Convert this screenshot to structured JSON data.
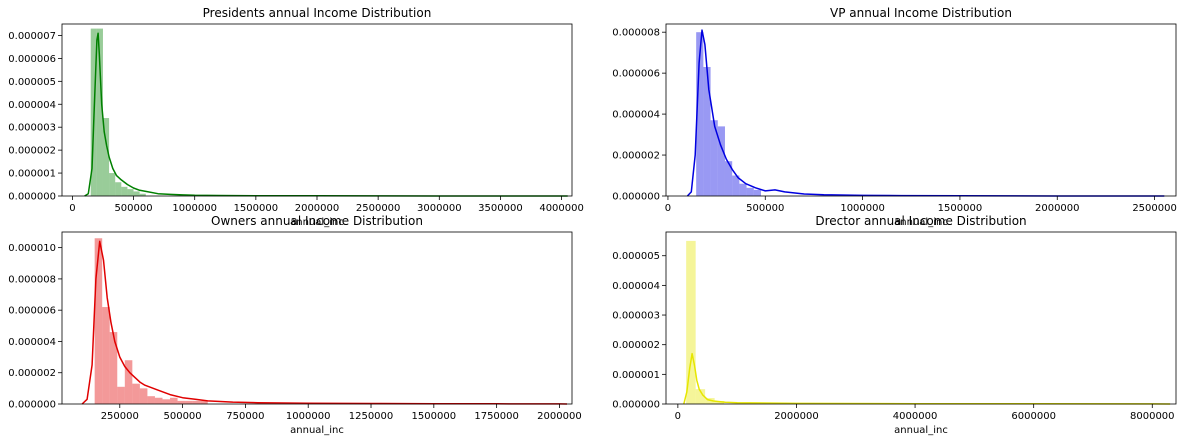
{
  "chart_data": [
    {
      "type": "histogram+kde",
      "title": "Presidents annual Income Distribution",
      "xlabel": "annual_inc",
      "ylabel": "",
      "color": "#008000",
      "xlim": [
        -85000,
        4085000
      ],
      "ylim": [
        0,
        7.5e-06
      ],
      "xticks": [
        0,
        500000,
        1000000,
        1500000,
        2000000,
        2500000,
        3000000,
        3500000,
        4000000
      ],
      "xtick_labels": [
        "0",
        "500000",
        "1000000",
        "1500000",
        "2000000",
        "2500000",
        "3000000",
        "3500000",
        "4000000"
      ],
      "yticks": [
        0,
        1e-06,
        2e-06,
        3e-06,
        4e-06,
        5e-06,
        6e-06,
        7e-06
      ],
      "ytick_labels": [
        "0.000000",
        "0.000001",
        "0.000002",
        "0.000003",
        "0.000004",
        "0.000005",
        "0.000006",
        "0.000007"
      ],
      "bins": [
        {
          "x0": 150000,
          "x1": 200000,
          "y": 7.3e-06
        },
        {
          "x0": 200000,
          "x1": 250000,
          "y": 7.3e-06
        },
        {
          "x0": 250000,
          "x1": 300000,
          "y": 3.4e-06
        },
        {
          "x0": 300000,
          "x1": 350000,
          "y": 1e-06
        },
        {
          "x0": 350000,
          "x1": 400000,
          "y": 6e-07
        },
        {
          "x0": 400000,
          "x1": 450000,
          "y": 4e-07
        },
        {
          "x0": 450000,
          "x1": 500000,
          "y": 3e-07
        },
        {
          "x0": 500000,
          "x1": 550000,
          "y": 2e-07
        },
        {
          "x0": 550000,
          "x1": 600000,
          "y": 1e-07
        }
      ],
      "kde": {
        "x": [
          100000,
          130000,
          160000,
          180000,
          200000,
          210000,
          220000,
          240000,
          260000,
          280000,
          300000,
          330000,
          360000,
          400000,
          450000,
          500000,
          550000,
          600000,
          700000,
          800000,
          900000,
          1000000,
          1200000,
          1500000,
          2000000,
          2500000,
          3000000,
          3500000,
          4050000
        ],
        "y": [
          0,
          1e-07,
          1.2e-06,
          4e-06,
          6.8e-06,
          7.1e-06,
          6.2e-06,
          4e-06,
          2.8e-06,
          2.2e-06,
          1.7e-06,
          1.2e-06,
          9e-07,
          7e-07,
          5e-07,
          3.5e-07,
          2.5e-07,
          2e-07,
          1e-07,
          7e-08,
          5e-08,
          3e-08,
          2e-08,
          1e-08,
          1e-08,
          5e-09,
          0,
          0,
          0
        ]
      }
    },
    {
      "type": "histogram+kde",
      "title": "VP annual Income Distribution",
      "xlabel": "annual_inc",
      "ylabel": "",
      "color": "#0000e0",
      "xlim": [
        -10000,
        2610000
      ],
      "ylim": [
        0,
        8.4e-06
      ],
      "xticks": [
        0,
        500000,
        1000000,
        1500000,
        2000000,
        2500000
      ],
      "xtick_labels": [
        "0",
        "500000",
        "1000000",
        "1500000",
        "2000000",
        "2500000"
      ],
      "yticks": [
        0,
        2e-06,
        4e-06,
        6e-06,
        8e-06
      ],
      "ytick_labels": [
        "0.000000",
        "0.000002",
        "0.000004",
        "0.000006",
        "0.000008"
      ],
      "bins": [
        {
          "x0": 145000,
          "x1": 182000,
          "y": 8e-06
        },
        {
          "x0": 182000,
          "x1": 219000,
          "y": 6.3e-06
        },
        {
          "x0": 219000,
          "x1": 256000,
          "y": 3.7e-06
        },
        {
          "x0": 256000,
          "x1": 293000,
          "y": 3.4e-06
        },
        {
          "x0": 293000,
          "x1": 330000,
          "y": 1.7e-06
        },
        {
          "x0": 330000,
          "x1": 367000,
          "y": 1e-06
        },
        {
          "x0": 367000,
          "x1": 404000,
          "y": 6e-07
        },
        {
          "x0": 404000,
          "x1": 441000,
          "y": 4e-07
        },
        {
          "x0": 441000,
          "x1": 478000,
          "y": 3e-07
        }
      ],
      "kde": {
        "x": [
          100000,
          120000,
          140000,
          160000,
          175000,
          190000,
          210000,
          240000,
          270000,
          300000,
          330000,
          360000,
          400000,
          450000,
          500000,
          550000,
          600000,
          700000,
          800000,
          1000000,
          1200000,
          1500000,
          2000000,
          2550000
        ],
        "y": [
          0,
          2e-07,
          2e-06,
          6.5e-06,
          8.1e-06,
          7.4e-06,
          5.2e-06,
          3.4e-06,
          2.5e-06,
          1.8e-06,
          1.3e-06,
          9e-07,
          6e-07,
          4e-07,
          2.5e-07,
          3e-07,
          2e-07,
          1e-07,
          6e-08,
          3e-08,
          2e-08,
          1e-08,
          0,
          0
        ]
      }
    },
    {
      "type": "histogram+kde",
      "title": "Owners annual Income Distribution",
      "xlabel": "annual_inc",
      "ylabel": "",
      "color": "#e00000",
      "xlim": [
        20000,
        2050000
      ],
      "ylim": [
        0,
        1.1e-05
      ],
      "xticks": [
        250000,
        500000,
        750000,
        1000000,
        1250000,
        1500000,
        1750000,
        2000000
      ],
      "xtick_labels": [
        "250000",
        "500000",
        "750000",
        "1000000",
        "1250000",
        "1500000",
        "1750000",
        "2000000"
      ],
      "yticks": [
        0,
        2e-06,
        4e-06,
        6e-06,
        8e-06,
        1e-05
      ],
      "ytick_labels": [
        "0.000000",
        "0.000002",
        "0.000004",
        "0.000006",
        "0.000008",
        "0.000010"
      ],
      "bins": [
        {
          "x0": 150000,
          "x1": 180000,
          "y": 1.06e-05
        },
        {
          "x0": 180000,
          "x1": 210000,
          "y": 6.2e-06
        },
        {
          "x0": 210000,
          "x1": 240000,
          "y": 4.6e-06
        },
        {
          "x0": 240000,
          "x1": 270000,
          "y": 1.1e-06
        },
        {
          "x0": 270000,
          "x1": 300000,
          "y": 2.8e-06
        },
        {
          "x0": 300000,
          "x1": 330000,
          "y": 1.3e-06
        },
        {
          "x0": 330000,
          "x1": 360000,
          "y": 1e-06
        },
        {
          "x0": 360000,
          "x1": 390000,
          "y": 5e-07
        },
        {
          "x0": 390000,
          "x1": 420000,
          "y": 4e-07
        },
        {
          "x0": 420000,
          "x1": 450000,
          "y": 3e-07
        },
        {
          "x0": 450000,
          "x1": 480000,
          "y": 4e-07
        },
        {
          "x0": 480000,
          "x1": 510000,
          "y": 2e-07
        },
        {
          "x0": 510000,
          "x1": 540000,
          "y": 2e-07
        },
        {
          "x0": 540000,
          "x1": 570000,
          "y": 2e-07
        },
        {
          "x0": 570000,
          "x1": 600000,
          "y": 2e-07
        }
      ],
      "kde": {
        "x": [
          100000,
          120000,
          140000,
          155000,
          170000,
          185000,
          200000,
          215000,
          230000,
          250000,
          270000,
          290000,
          310000,
          330000,
          350000,
          400000,
          450000,
          500000,
          550000,
          600000,
          700000,
          800000,
          1000000,
          1250000,
          1500000,
          1750000,
          2000000,
          2030000
        ],
        "y": [
          0,
          3e-07,
          2.5e-06,
          8e-06,
          1.04e-05,
          9.2e-06,
          6.8e-06,
          5.2e-06,
          4e-06,
          3e-06,
          2.4e-06,
          2e-06,
          1.7e-06,
          1.4e-06,
          1.2e-06,
          9e-07,
          6e-07,
          4e-07,
          3e-07,
          2e-07,
          1.2e-07,
          8e-08,
          5e-08,
          3e-08,
          2e-08,
          1e-08,
          5e-09,
          0
        ]
      }
    },
    {
      "type": "histogram+kde",
      "title": "Drector annual Income Distribution",
      "xlabel": "annual_inc",
      "ylabel": "",
      "color": "#e6e600",
      "xlim": [
        -200000,
        8400000
      ],
      "ylim": [
        0,
        5.8e-06
      ],
      "xticks": [
        0,
        2000000,
        4000000,
        6000000,
        8000000
      ],
      "xtick_labels": [
        "0",
        "2000000",
        "4000000",
        "6000000",
        "8000000"
      ],
      "yticks": [
        0,
        1e-06,
        2e-06,
        3e-06,
        4e-06,
        5e-06
      ],
      "ytick_labels": [
        "0.000000",
        "0.000001",
        "0.000002",
        "0.000003",
        "0.000004",
        "0.000005"
      ],
      "bins": [
        {
          "x0": 140000,
          "x1": 300000,
          "y": 5.5e-06
        },
        {
          "x0": 300000,
          "x1": 460000,
          "y": 5e-07
        },
        {
          "x0": 460000,
          "x1": 620000,
          "y": 2e-07
        },
        {
          "x0": 620000,
          "x1": 780000,
          "y": 1e-07
        }
      ],
      "kde": {
        "x": [
          100000,
          150000,
          200000,
          240000,
          280000,
          320000,
          360000,
          420000,
          500000,
          600000,
          800000,
          1000000,
          2000000,
          4000000,
          6000000,
          8000000,
          8300000
        ],
        "y": [
          0,
          4e-07,
          1.2e-06,
          1.7e-06,
          1.3e-06,
          8e-07,
          5e-07,
          3e-07,
          1.5e-07,
          1e-07,
          6e-08,
          4e-08,
          2e-08,
          1e-08,
          1e-08,
          5e-09,
          0
        ]
      }
    }
  ]
}
